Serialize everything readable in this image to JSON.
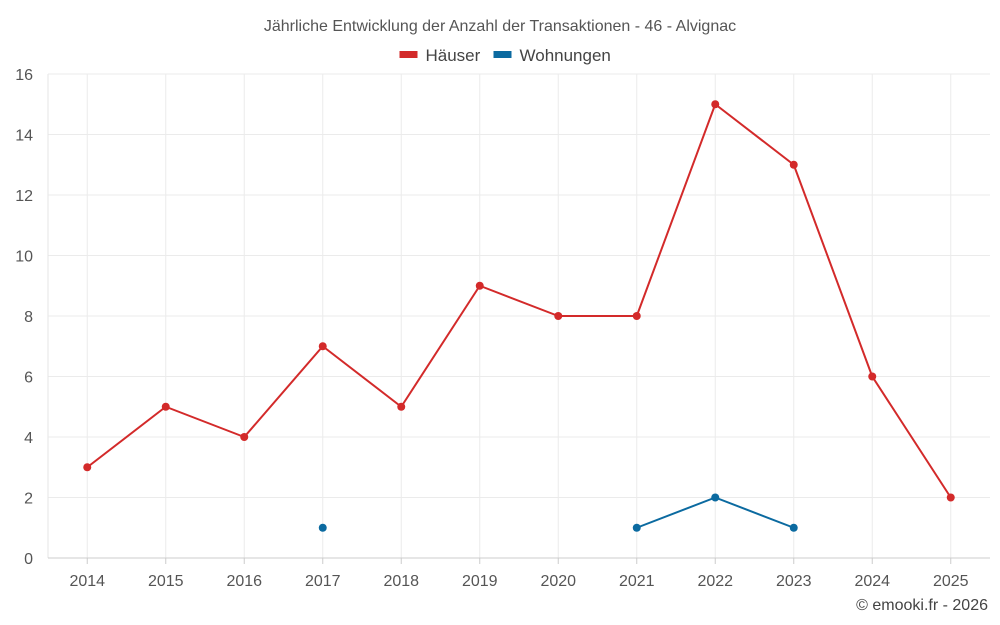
{
  "chart_data": {
    "type": "line",
    "title": "Jährliche Entwicklung der Anzahl der Transaktionen - 46 - Alvignac",
    "categories": [
      "2014",
      "2015",
      "2016",
      "2017",
      "2018",
      "2019",
      "2020",
      "2021",
      "2022",
      "2023",
      "2024",
      "2025"
    ],
    "series": [
      {
        "name": "Häuser",
        "color": "#d32a2a",
        "values": [
          3,
          5,
          4,
          7,
          5,
          9,
          8,
          8,
          15,
          13,
          6,
          2
        ]
      },
      {
        "name": "Wohnungen",
        "color": "#0b6aa0",
        "values": [
          null,
          null,
          null,
          1,
          null,
          null,
          null,
          1,
          2,
          1,
          null,
          null
        ]
      }
    ],
    "ylim": [
      0,
      16
    ],
    "yticks": [
      0,
      2,
      4,
      6,
      8,
      10,
      12,
      14,
      16
    ],
    "grid": true,
    "legend": "top-center"
  },
  "credit": "© emooki.fr - 2026"
}
